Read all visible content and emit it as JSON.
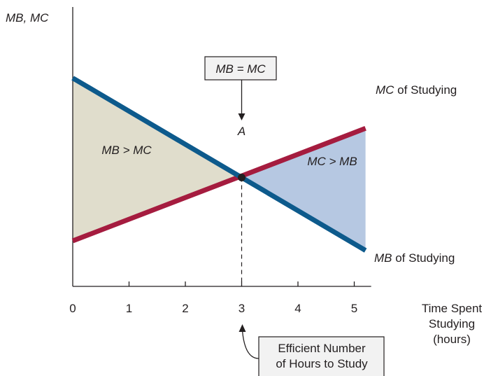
{
  "chart_data": {
    "type": "line",
    "ylabel": "MB, MC",
    "xlabel_lines": [
      "Time Spent",
      "Studying",
      "(hours)"
    ],
    "x_ticks": [
      0,
      1,
      2,
      3,
      4,
      5
    ],
    "x_tick_labels": [
      "0",
      "1",
      "2",
      "3",
      "4",
      "5"
    ],
    "xlim": [
      0,
      5.3
    ],
    "ylim": [
      0,
      10
    ],
    "series": [
      {
        "name_italic": "MB",
        "name_rest": " of Studying",
        "color": "#0d5a8c",
        "points": [
          [
            0,
            8.7
          ],
          [
            5.2,
            1.5
          ]
        ]
      },
      {
        "name_italic": "MC",
        "name_rest": " of Studying",
        "color": "#a51c3f",
        "points": [
          [
            0,
            1.9
          ],
          [
            5.2,
            6.6
          ]
        ]
      }
    ],
    "regions": [
      {
        "label": "MB > MC",
        "color": "#e0ddcc"
      },
      {
        "label": "MC > MB",
        "color": "#b6c8e2"
      }
    ],
    "equilibrium": {
      "x": 3,
      "label": "A"
    },
    "annotations": {
      "top_box": "MB = MC",
      "bottom_box_lines": [
        "Efficient Number",
        "of Hours to Study"
      ]
    }
  }
}
